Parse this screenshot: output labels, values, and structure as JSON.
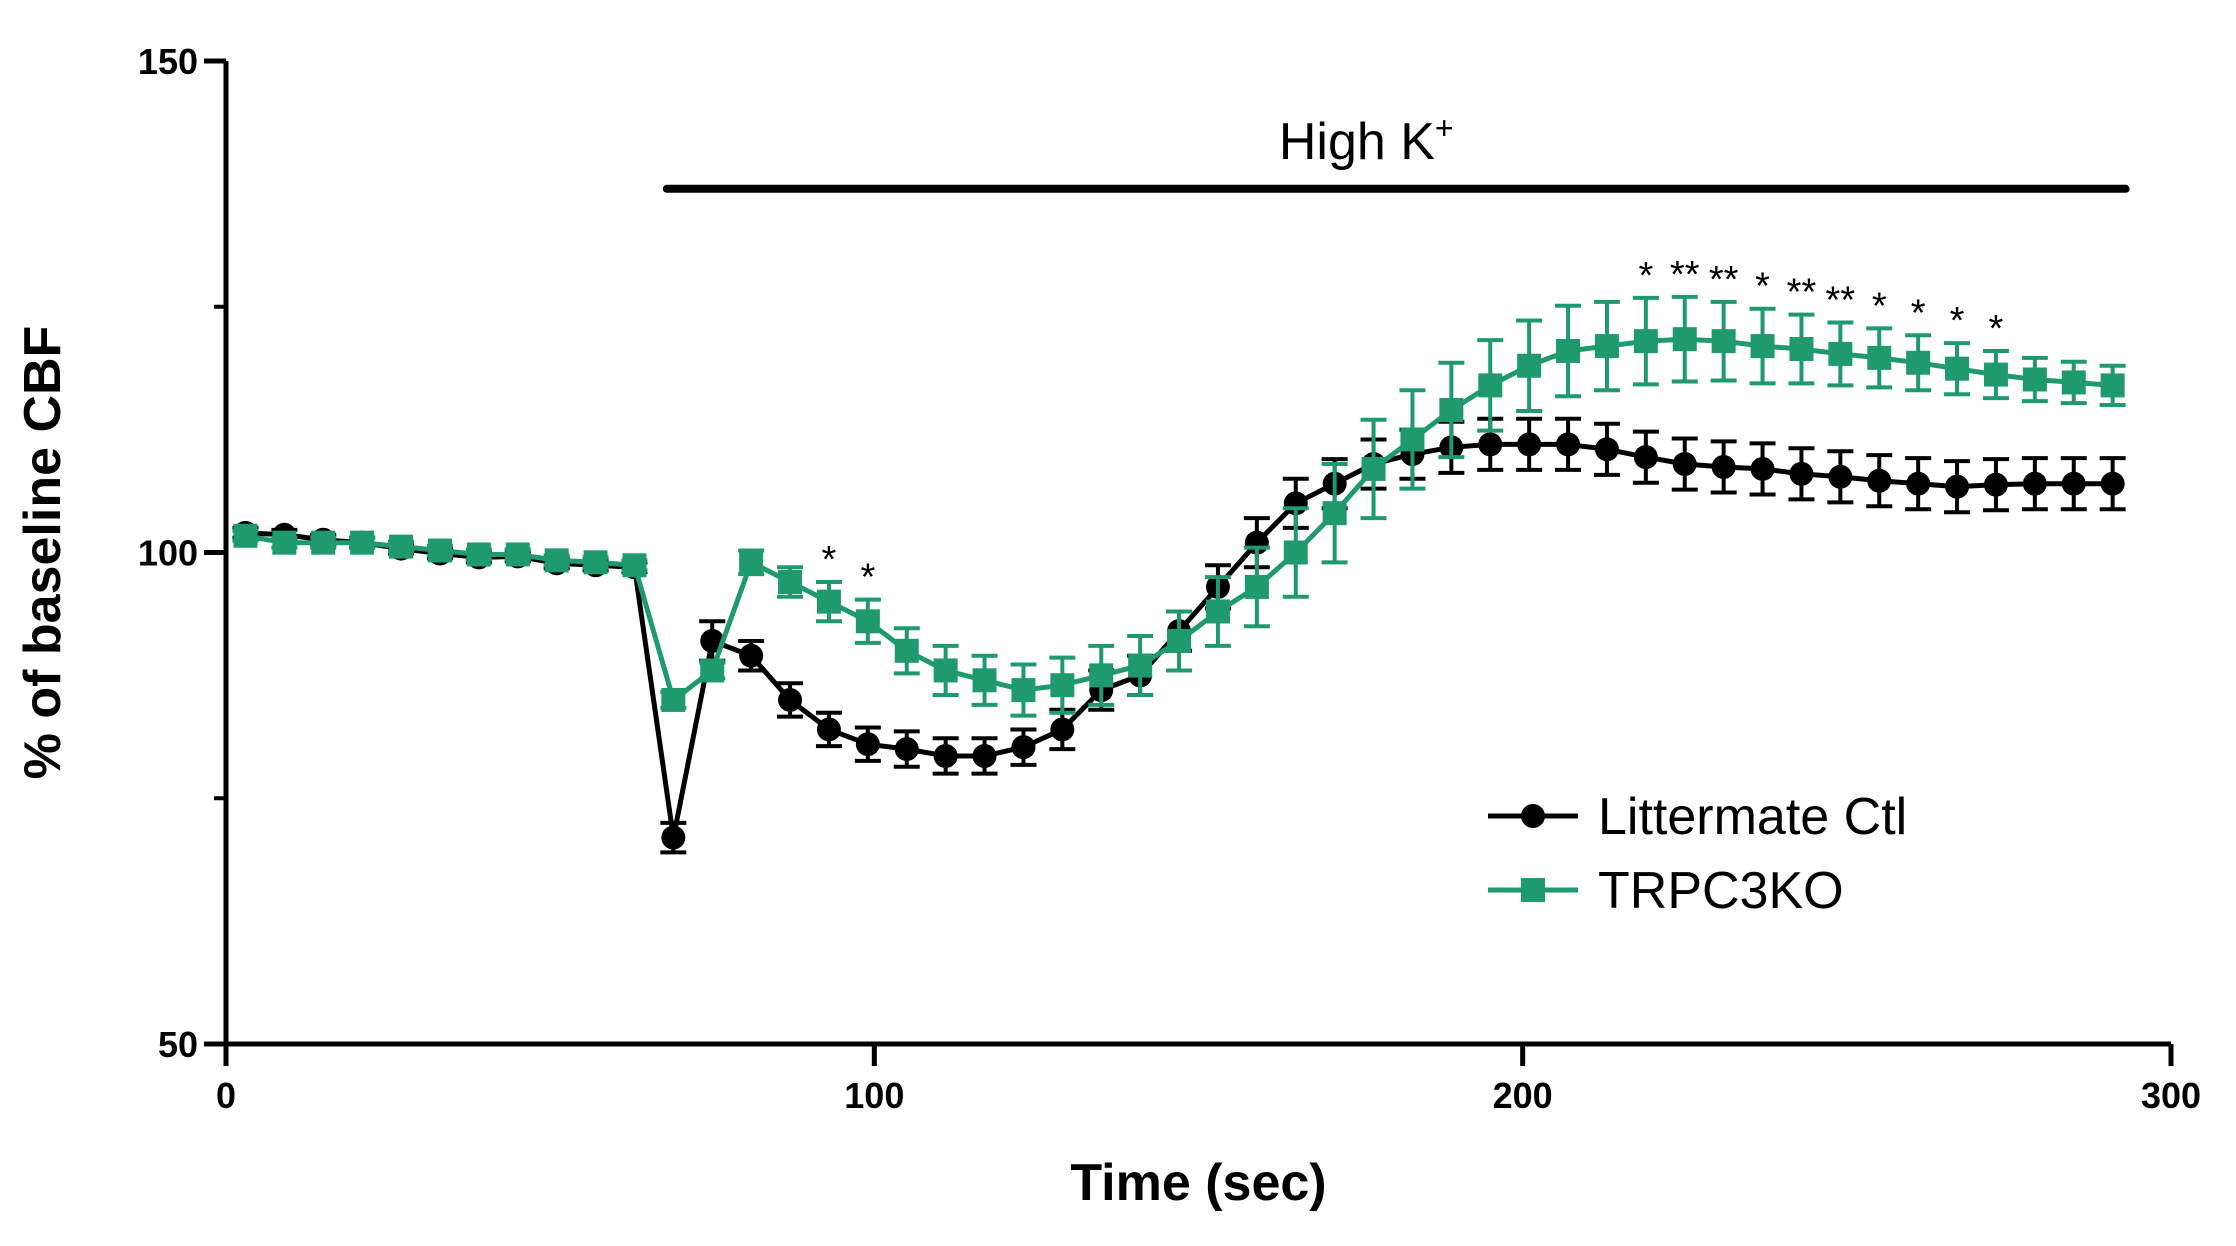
{
  "chart_data": {
    "type": "line",
    "title": "",
    "xlabel": "Time (sec)",
    "ylabel": "% of baseline CBF",
    "xlim": [
      0,
      300
    ],
    "ylim": [
      50,
      150
    ],
    "x_ticks": [
      0,
      100,
      200,
      300
    ],
    "y_ticks": [
      50,
      100,
      150
    ],
    "grid": false,
    "legend_position": "bottom-right",
    "annotation": {
      "text": "High K",
      "superscript": "+",
      "x_start": 68,
      "x_end": 293,
      "y": 137
    },
    "colors": {
      "ctl": "#000000",
      "ko": "#1f9a6e"
    },
    "x": [
      3,
      9,
      15,
      21,
      27,
      33,
      39,
      45,
      51,
      57,
      63,
      69,
      75,
      81,
      87,
      93,
      99,
      105,
      111,
      117,
      123,
      129,
      135,
      141,
      147,
      153,
      159,
      165,
      171,
      177,
      183,
      189,
      195,
      201,
      207,
      213,
      219,
      225,
      231,
      237,
      243,
      249,
      255,
      261,
      267,
      273,
      279,
      285,
      291
    ],
    "series": [
      {
        "name": "Littermate Ctl",
        "marker": "circle",
        "values": [
          102,
          101.8,
          101.3,
          101,
          100.4,
          99.9,
          99.5,
          99.6,
          98.9,
          98.7,
          98.5,
          71,
          91,
          89.5,
          85,
          82,
          80.5,
          80,
          79.3,
          79.3,
          80.2,
          82,
          86,
          87.5,
          92,
          96.5,
          101,
          105,
          107,
          109,
          110,
          110.7,
          111,
          111,
          111,
          110.5,
          109.7,
          109,
          108.7,
          108.5,
          108,
          107.7,
          107.3,
          107,
          106.7,
          106.9,
          107,
          107,
          107
        ],
        "errors": [
          0.5,
          0.5,
          0.5,
          0.5,
          0.5,
          0.5,
          0.5,
          0.5,
          0.5,
          0.5,
          0.5,
          1.5,
          2,
          1.5,
          1.7,
          1.7,
          1.7,
          1.8,
          1.8,
          1.8,
          1.8,
          2,
          2,
          2,
          2,
          2.2,
          2.5,
          2.5,
          2.5,
          2.5,
          2.5,
          2.6,
          2.6,
          2.6,
          2.6,
          2.6,
          2.6,
          2.6,
          2.6,
          2.6,
          2.6,
          2.6,
          2.6,
          2.6,
          2.6,
          2.6,
          2.6,
          2.6,
          2.6
        ]
      },
      {
        "name": "TRPC3KO",
        "marker": "square",
        "values": [
          101.7,
          101,
          101,
          101,
          100.6,
          100.2,
          99.8,
          99.8,
          99.2,
          99,
          98.7,
          85,
          88,
          99,
          97,
          95,
          93,
          90,
          88,
          87,
          86,
          86.5,
          87.5,
          88.5,
          91,
          94,
          96.5,
          100,
          104,
          108.5,
          111.5,
          114.5,
          117,
          119,
          120.5,
          121,
          121.5,
          121.7,
          121.5,
          121,
          120.7,
          120.2,
          119.8,
          119.3,
          118.7,
          118.1,
          117.6,
          117.3,
          117
        ],
        "errors": [
          0.5,
          0.5,
          0.5,
          0.5,
          0.5,
          0.5,
          0.5,
          0.5,
          0.5,
          0.5,
          0.5,
          0.8,
          0.8,
          1.2,
          1.5,
          2,
          2.2,
          2.3,
          2.5,
          2.5,
          2.6,
          2.8,
          3,
          3,
          3,
          3.5,
          4,
          4.5,
          5,
          5,
          5,
          4.8,
          4.6,
          4.6,
          4.6,
          4.5,
          4.4,
          4.3,
          4,
          3.8,
          3.5,
          3.2,
          3,
          2.8,
          2.6,
          2.4,
          2.2,
          2.1,
          2
        ]
      }
    ],
    "significance_markers": [
      {
        "x": 93,
        "label": "*"
      },
      {
        "x": 99,
        "label": "*"
      },
      {
        "x": 219,
        "label": "*"
      },
      {
        "x": 225,
        "label": "**"
      },
      {
        "x": 231,
        "label": "**"
      },
      {
        "x": 237,
        "label": "*"
      },
      {
        "x": 243,
        "label": "**"
      },
      {
        "x": 249,
        "label": "**"
      },
      {
        "x": 255,
        "label": "*"
      },
      {
        "x": 261,
        "label": "*"
      },
      {
        "x": 267,
        "label": "*"
      },
      {
        "x": 273,
        "label": "*"
      }
    ]
  }
}
